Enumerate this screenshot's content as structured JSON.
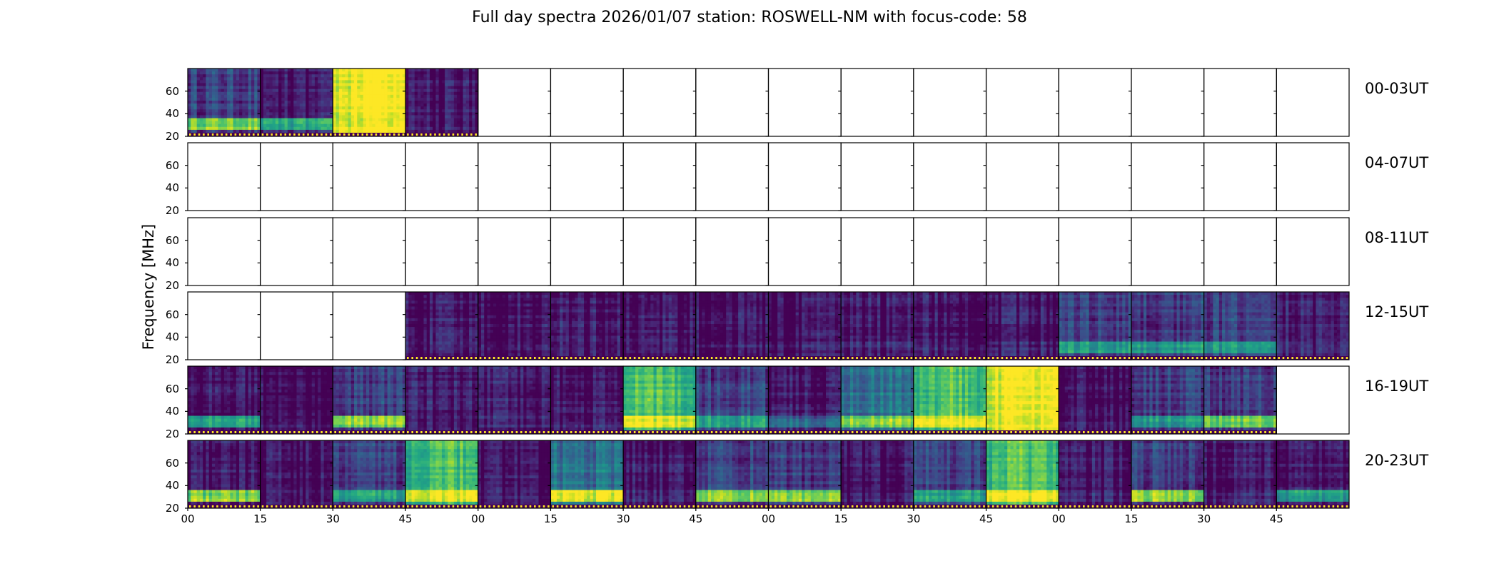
{
  "chart_data": {
    "type": "heatmap",
    "title": "Full day spectra 2026/01/07 station: ROSWELL-NM with focus-code: 58",
    "ylabel": "Frequency [MHz]",
    "xlabel": "",
    "ylim": [
      20,
      80
    ],
    "yticks": [
      "20",
      "40",
      "60"
    ],
    "xticks": [
      "00",
      "15",
      "30",
      "45",
      "00",
      "15",
      "30",
      "45",
      "00",
      "15",
      "30",
      "45",
      "00",
      "15",
      "30",
      "45"
    ],
    "colormap": "viridis",
    "colors": {
      "low": "#440154",
      "mid": "#21918c",
      "high": "#fde725",
      "frame": "#000000",
      "empty": "#ffffff"
    },
    "panels_per_row": 16,
    "minutes_per_panel": 15,
    "intensity_scale": "0 = no data, 1 = dark/quiet, 2 = low, 3 = moderate, 4 = strong, 5 = saturated",
    "rows": [
      {
        "label": "00-03UT",
        "intensity": [
          2,
          1,
          5,
          1,
          0,
          0,
          0,
          0,
          0,
          0,
          0,
          0,
          0,
          0,
          0,
          0
        ],
        "low_band": [
          4,
          3,
          5,
          1,
          0,
          0,
          0,
          0,
          0,
          0,
          0,
          0,
          0,
          0,
          0,
          0
        ]
      },
      {
        "label": "04-07UT",
        "intensity": [
          0,
          0,
          0,
          0,
          0,
          0,
          0,
          0,
          0,
          0,
          0,
          0,
          0,
          0,
          0,
          0
        ],
        "low_band": [
          0,
          0,
          0,
          0,
          0,
          0,
          0,
          0,
          0,
          0,
          0,
          0,
          0,
          0,
          0,
          0
        ]
      },
      {
        "label": "08-11UT",
        "intensity": [
          0,
          0,
          0,
          0,
          0,
          0,
          0,
          0,
          0,
          0,
          0,
          0,
          0,
          0,
          0,
          0
        ],
        "low_band": [
          0,
          0,
          0,
          0,
          0,
          0,
          0,
          0,
          0,
          0,
          0,
          0,
          0,
          0,
          0,
          0
        ]
      },
      {
        "label": "12-15UT",
        "intensity": [
          0,
          0,
          0,
          1,
          1,
          1,
          1,
          1,
          1,
          1,
          1,
          1,
          2,
          2,
          2,
          1
        ],
        "low_band": [
          0,
          0,
          0,
          1,
          1,
          1,
          1,
          1,
          1,
          1,
          1,
          1,
          3,
          3,
          3,
          1
        ]
      },
      {
        "label": "16-19UT",
        "intensity": [
          1,
          1,
          2,
          1,
          1,
          1,
          4,
          2,
          1,
          3,
          4,
          5,
          1,
          2,
          2,
          0
        ],
        "low_band": [
          3,
          1,
          4,
          1,
          1,
          1,
          5,
          3,
          2,
          4,
          5,
          5,
          1,
          3,
          4,
          0
        ]
      },
      {
        "label": "20-23UT",
        "intensity": [
          1,
          1,
          2,
          4,
          1,
          3,
          1,
          2,
          2,
          1,
          2,
          4,
          1,
          2,
          1,
          1
        ],
        "low_band": [
          4,
          1,
          3,
          5,
          1,
          5,
          1,
          4,
          4,
          1,
          3,
          5,
          1,
          4,
          1,
          3
        ]
      }
    ]
  }
}
